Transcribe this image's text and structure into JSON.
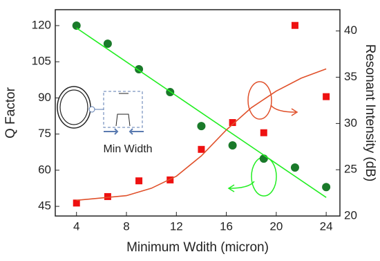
{
  "chart_data": {
    "type": "scatter",
    "x_label": "Minimum Wdith (micron)",
    "y_label": "Q Factor",
    "y2_label": "Resonant Intensity (dB)",
    "inset_label": "Min Width",
    "xlim": [
      2.3,
      25.1
    ],
    "xticks": [
      4,
      8,
      12,
      16,
      20,
      24
    ],
    "ylim": [
      41,
      126.6
    ],
    "yticks": [
      45,
      60,
      75,
      90,
      105,
      120
    ],
    "y2lim": [
      20,
      42.3
    ],
    "y2ticks": [
      20,
      25,
      30,
      35,
      40
    ],
    "series": [
      {
        "mode": "markers",
        "marker": "circle",
        "color": "#1a7a2a",
        "axis": "y",
        "x": [
          4,
          6.5,
          9,
          11.5,
          14,
          16.5,
          19,
          21.5,
          24
        ],
        "values": [
          120,
          112.5,
          101.9,
          92.4,
          78.3,
          70.3,
          64.8,
          61.1,
          53
        ]
      },
      {
        "mode": "line",
        "color": "#22ee22",
        "axis": "y",
        "x": [
          4,
          24
        ],
        "values": [
          119,
          48.7
        ]
      },
      {
        "mode": "markers",
        "marker": "square",
        "color": "#ee1111",
        "axis": "y2",
        "x": [
          4,
          6.5,
          9,
          11.5,
          14,
          16.5,
          19,
          21.5,
          24
        ],
        "values": [
          21.4,
          22.1,
          23.8,
          23.9,
          27.2,
          30.1,
          29,
          40.6,
          32.9
        ]
      },
      {
        "mode": "line",
        "color": "#e0502a",
        "axis": "y2",
        "x": [
          4,
          8,
          10,
          12,
          14,
          16,
          18,
          20,
          22,
          24
        ],
        "values": [
          21.7,
          22.2,
          23,
          24.3,
          26.5,
          29.3,
          31.7,
          33.5,
          34.9,
          35.9
        ]
      }
    ]
  }
}
